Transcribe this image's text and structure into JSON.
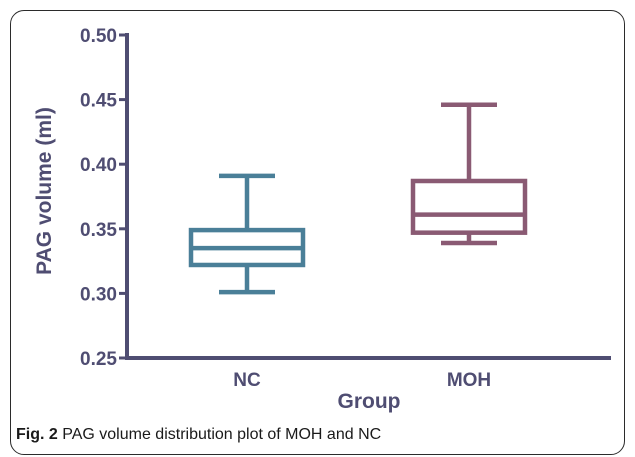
{
  "figure": {
    "caption_label": "Fig. 2",
    "caption_text": "PAG volume distribution plot of MOH and NC"
  },
  "chart_data": {
    "type": "boxplot",
    "xlabel": "Group",
    "ylabel": "PAG volume (ml)",
    "ylim": [
      0.25,
      0.5
    ],
    "yticks": [
      "0.50",
      "0.45",
      "0.40",
      "0.35",
      "0.30",
      "0.25"
    ],
    "ytick_values": [
      0.5,
      0.45,
      0.4,
      0.35,
      0.3,
      0.25
    ],
    "categories": [
      "NC",
      "MOH"
    ],
    "boxes": [
      {
        "name": "NC",
        "min": 0.301,
        "q1": 0.322,
        "median": 0.335,
        "q3": 0.349,
        "max": 0.391,
        "color": "#4a7f98"
      },
      {
        "name": "MOH",
        "min": 0.339,
        "q1": 0.347,
        "median": 0.361,
        "q3": 0.387,
        "max": 0.446,
        "color": "#8a5a73"
      }
    ],
    "axis_color": "#4f4d72",
    "grid": false
  }
}
